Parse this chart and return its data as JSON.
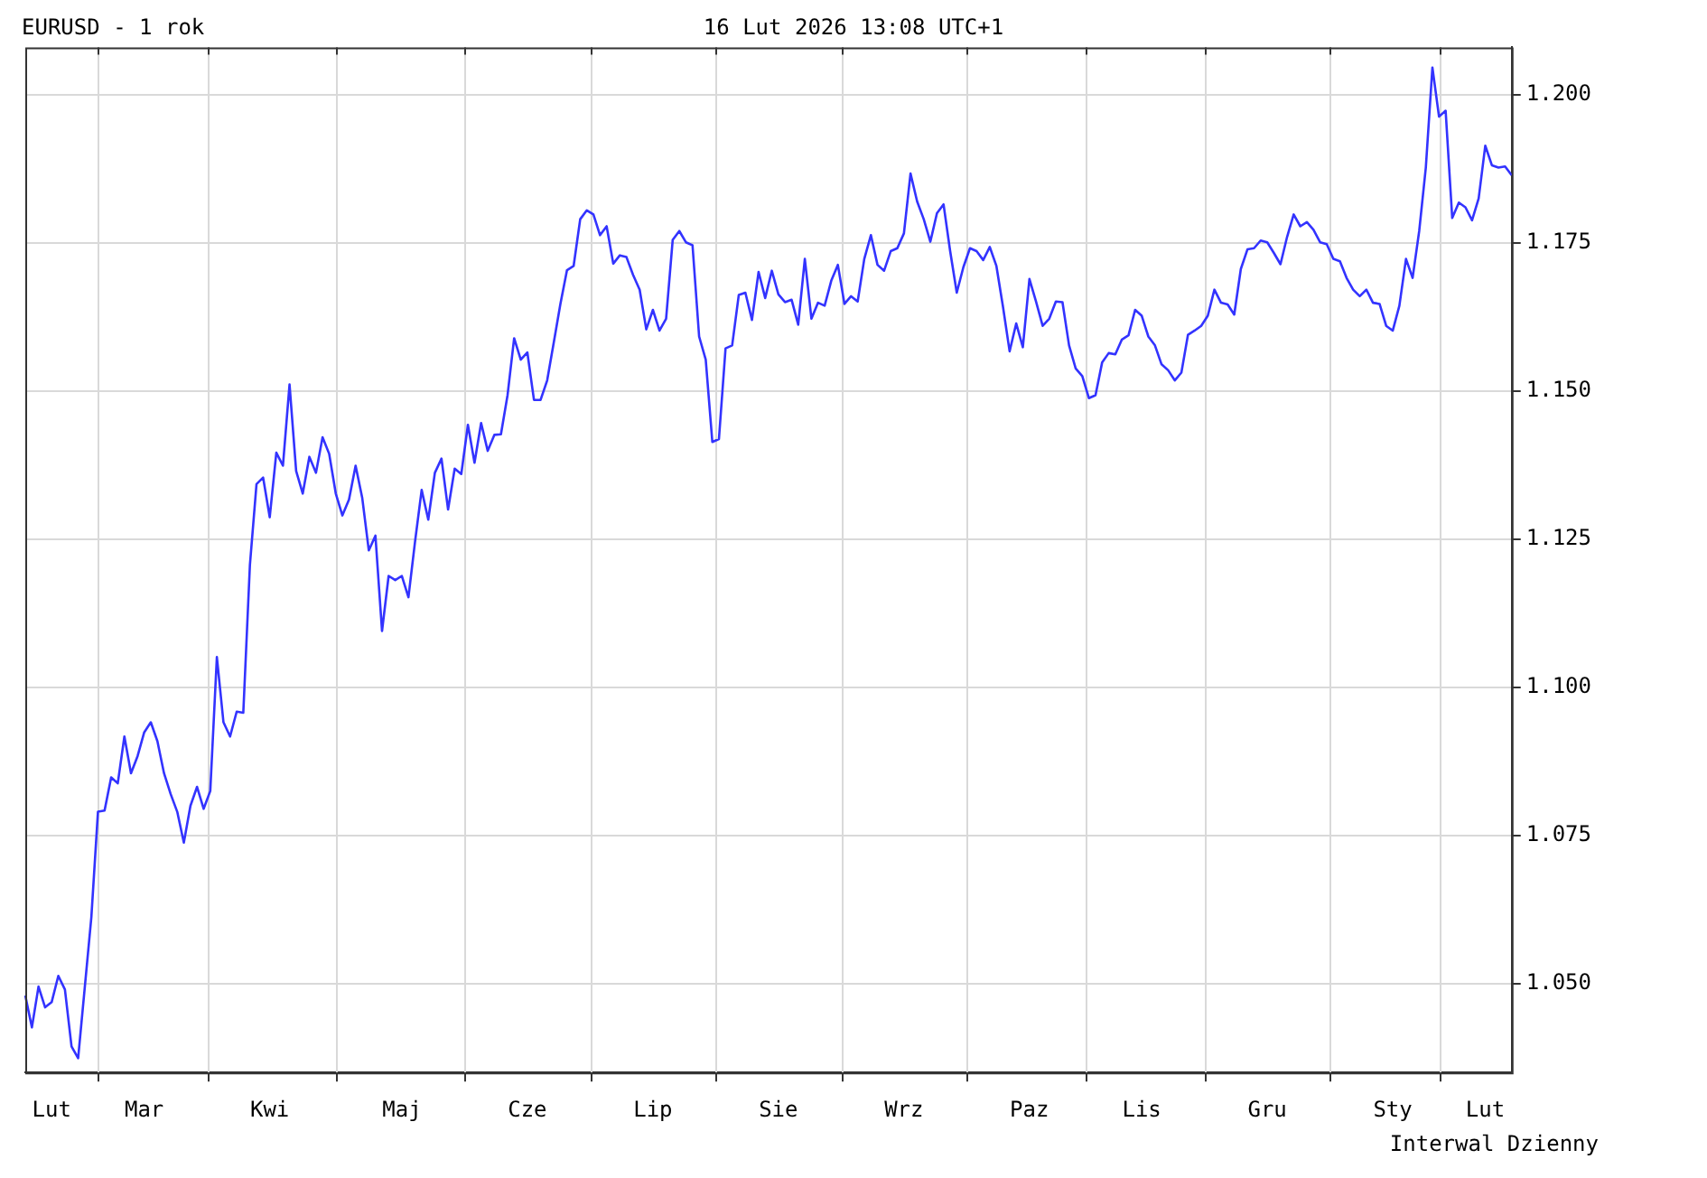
{
  "chart_data": {
    "type": "line",
    "title": "EURUSD - 1 rok",
    "subtitle": "16 Lut 2026 13:08 UTC+1",
    "annotations": [
      "Interwal Dzienny"
    ],
    "legend": false,
    "grid": true,
    "marker": "none",
    "line_style": "solid",
    "categories": [
      null,
      null,
      null,
      null,
      "Lut",
      null,
      null,
      null,
      null,
      null,
      null,
      null,
      null,
      null,
      null,
      null,
      null,
      null,
      "Mar",
      null,
      null,
      null,
      null,
      null,
      null,
      null,
      null,
      null,
      null,
      null,
      null,
      null,
      null,
      null,
      null,
      null,
      null,
      "Kwi",
      null,
      null,
      null,
      null,
      null,
      null,
      null,
      null,
      null,
      null,
      null,
      null,
      null,
      null,
      null,
      null,
      null,
      null,
      null,
      "Maj",
      null,
      null,
      null,
      null,
      null,
      null,
      null,
      null,
      null,
      null,
      null,
      null,
      null,
      null,
      null,
      null,
      null,
      null,
      "Cze",
      null,
      null,
      null,
      null,
      null,
      null,
      null,
      null,
      null,
      null,
      null,
      null,
      null,
      null,
      null,
      null,
      null,
      null,
      "Lip",
      null,
      null,
      null,
      null,
      null,
      null,
      null,
      null,
      null,
      null,
      null,
      null,
      null,
      null,
      null,
      null,
      null,
      null,
      "Sie",
      null,
      null,
      null,
      null,
      null,
      null,
      null,
      null,
      null,
      null,
      null,
      null,
      null,
      null,
      null,
      null,
      null,
      null,
      "Wrz",
      null,
      null,
      null,
      null,
      null,
      null,
      null,
      null,
      null,
      null,
      null,
      null,
      null,
      null,
      null,
      null,
      null,
      null,
      "Paz",
      null,
      null,
      null,
      null,
      null,
      null,
      null,
      null,
      null,
      null,
      null,
      null,
      null,
      null,
      null,
      null,
      "Lis",
      null,
      null,
      null,
      null,
      null,
      null,
      null,
      null,
      null,
      null,
      null,
      null,
      null,
      null,
      null,
      null,
      null,
      null,
      "Gru",
      null,
      null,
      null,
      null,
      null,
      null,
      null,
      null,
      null,
      null,
      null,
      null,
      null,
      null,
      null,
      null,
      null,
      null,
      "Sty",
      null,
      null,
      null,
      null,
      null,
      null,
      null,
      null,
      null,
      null,
      null,
      null,
      null,
      "Lut",
      null,
      null,
      null,
      null
    ],
    "ylim": [
      1.035,
      1.208
    ],
    "yticks": [
      {
        "value": 1.05,
        "label": "1.050"
      },
      {
        "value": 1.075,
        "label": "1.075"
      },
      {
        "value": 1.1,
        "label": "1.100"
      },
      {
        "value": 1.125,
        "label": "1.125"
      },
      {
        "value": 1.15,
        "label": "1.150"
      },
      {
        "value": 1.175,
        "label": "1.175"
      },
      {
        "value": 1.2,
        "label": "1.200"
      }
    ],
    "series": [
      {
        "color": "#3333ff",
        "values": [
          1.048,
          1.0426,
          1.0495,
          1.046,
          1.0469,
          1.0513,
          1.049,
          1.0394,
          1.0374,
          1.0493,
          1.0612,
          1.079,
          1.0792,
          1.0848,
          1.0838,
          1.0917,
          1.0855,
          1.0884,
          1.0924,
          1.0941,
          1.0909,
          1.0855,
          1.082,
          1.079,
          1.0738,
          1.08,
          1.0832,
          1.0795,
          1.0825,
          1.1051,
          1.0941,
          1.0917,
          1.0959,
          1.0957,
          1.1206,
          1.1343,
          1.1354,
          1.1287,
          1.1396,
          1.1374,
          1.1511,
          1.1365,
          1.1327,
          1.1389,
          1.1362,
          1.1422,
          1.1394,
          1.1327,
          1.129,
          1.1317,
          1.1374,
          1.132,
          1.1231,
          1.1256,
          1.1095,
          1.1188,
          1.1181,
          1.1188,
          1.1152,
          1.1246,
          1.1333,
          1.1283,
          1.1362,
          1.1386,
          1.13,
          1.1369,
          1.136,
          1.1443,
          1.1379,
          1.1446,
          1.1399,
          1.1426,
          1.1427,
          1.1493,
          1.1589,
          1.1553,
          1.1565,
          1.1485,
          1.1485,
          1.1518,
          1.1582,
          1.1647,
          1.1704,
          1.1711,
          1.179,
          1.1805,
          1.1798,
          1.1763,
          1.1778,
          1.1715,
          1.1729,
          1.1726,
          1.1696,
          1.1671,
          1.1604,
          1.1637,
          1.1602,
          1.1622,
          1.1755,
          1.177,
          1.1751,
          1.1746,
          1.1592,
          1.1553,
          1.1414,
          1.1419,
          1.1572,
          1.1577,
          1.1662,
          1.1666,
          1.162,
          1.1701,
          1.1657,
          1.1703,
          1.1663,
          1.165,
          1.1654,
          1.1612,
          1.1723,
          1.1622,
          1.1649,
          1.1644,
          1.1686,
          1.1713,
          1.1647,
          1.166,
          1.1651,
          1.1723,
          1.1763,
          1.1713,
          1.1703,
          1.1736,
          1.1741,
          1.1766,
          1.1867,
          1.182,
          1.179,
          1.1752,
          1.18,
          1.1815,
          1.1736,
          1.1666,
          1.1709,
          1.1741,
          1.1736,
          1.1721,
          1.1743,
          1.1711,
          1.1642,
          1.1567,
          1.1614,
          1.1574,
          1.1689,
          1.1651,
          1.161,
          1.1622,
          1.1651,
          1.165,
          1.1577,
          1.1538,
          1.1525,
          1.1488,
          1.1493,
          1.1548,
          1.1564,
          1.1562,
          1.1587,
          1.1594,
          1.1637,
          1.1627,
          1.1592,
          1.1577,
          1.1545,
          1.1535,
          1.1518,
          1.1531,
          1.1595,
          1.1602,
          1.161,
          1.1627,
          1.1671,
          1.1649,
          1.1646,
          1.1629,
          1.1706,
          1.1739,
          1.1741,
          1.1754,
          1.1751,
          1.1733,
          1.1714,
          1.176,
          1.1798,
          1.1778,
          1.1785,
          1.1772,
          1.1751,
          1.1748,
          1.1723,
          1.1719,
          1.1691,
          1.1671,
          1.166,
          1.1671,
          1.1649,
          1.1647,
          1.161,
          1.1602,
          1.1644,
          1.1723,
          1.1691,
          1.177,
          1.1877,
          1.2046,
          1.1963,
          1.1973,
          1.1792,
          1.1818,
          1.181,
          1.1788,
          1.1825,
          1.1914,
          1.1881,
          1.1877,
          1.1879,
          1.1864
        ]
      }
    ]
  }
}
